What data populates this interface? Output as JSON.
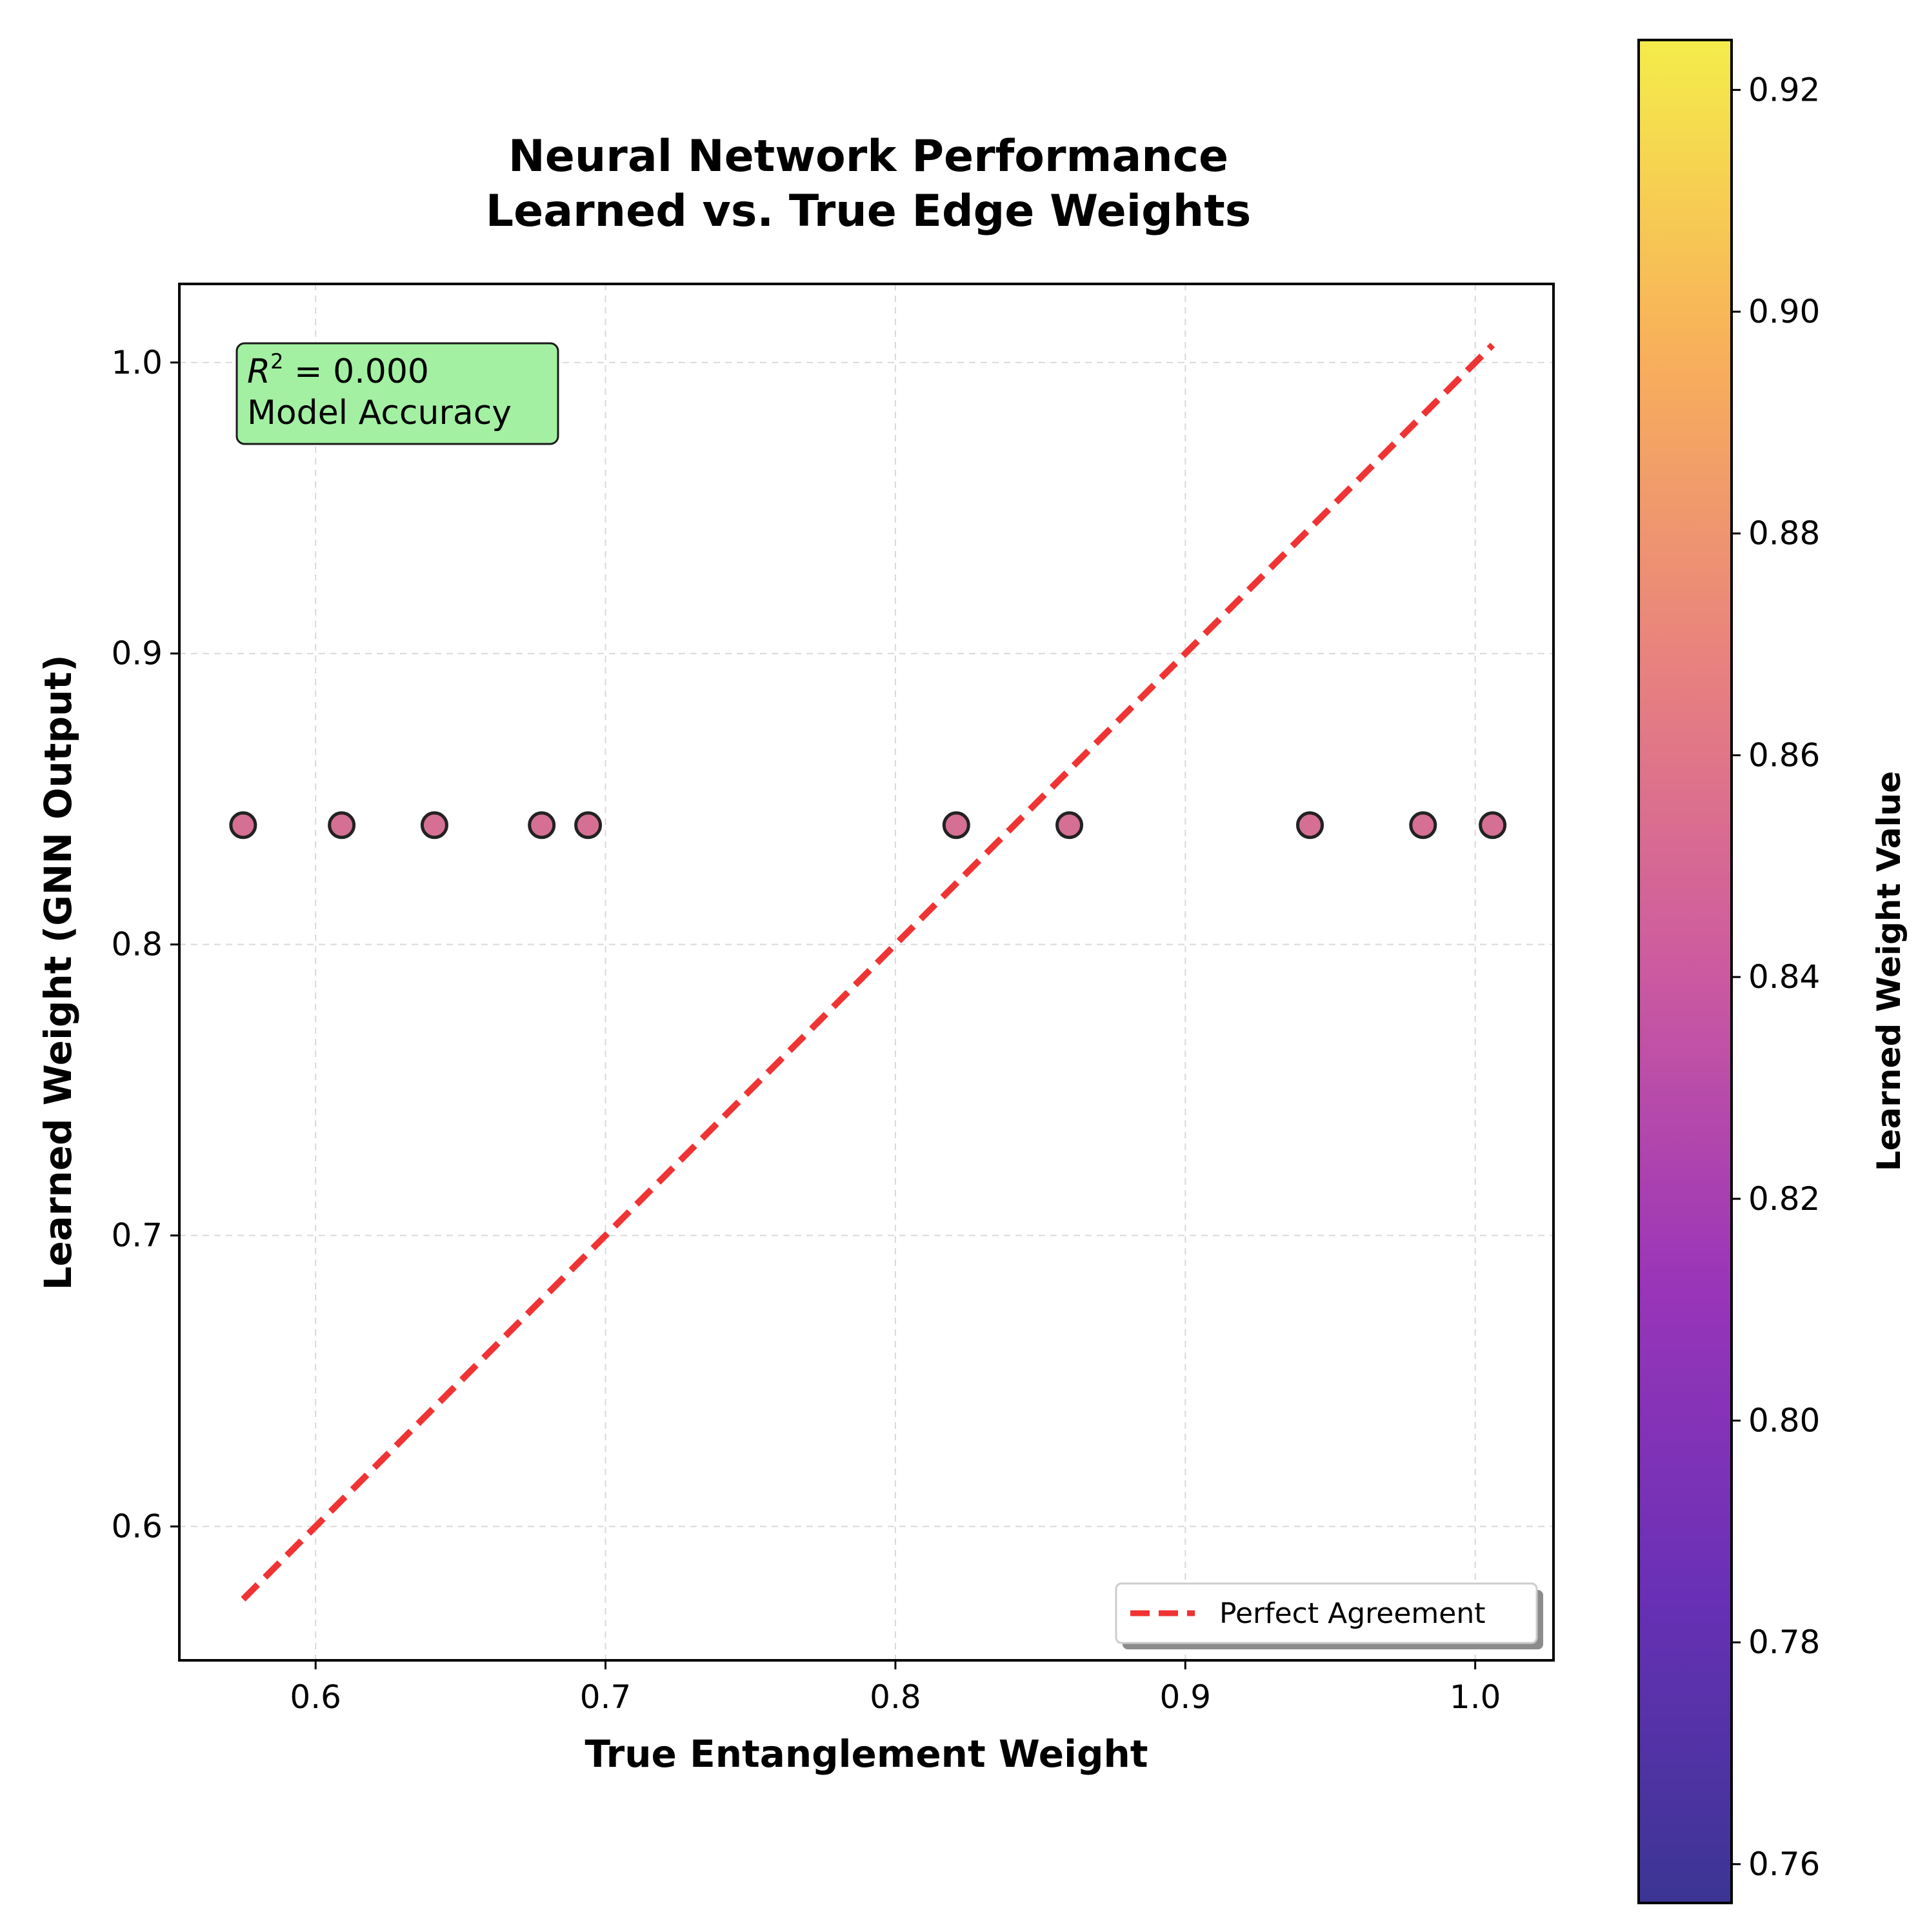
{
  "chart_data": {
    "type": "scatter",
    "title": "Neural Network Performance\nLearned vs. True Edge Weights",
    "xlabel": "True Entanglement Weight",
    "ylabel": "Learned Weight (GNN Output)",
    "xlim": [
      0.553,
      1.027
    ],
    "ylim": [
      0.554,
      1.027
    ],
    "xticks": [
      0.6,
      0.7,
      0.8,
      0.9,
      1.0
    ],
    "xtick_labels": [
      "0.6",
      "0.7",
      "0.8",
      "0.9",
      "1.0"
    ],
    "yticks": [
      0.6,
      0.7,
      0.8,
      0.9,
      1.0
    ],
    "ytick_labels": [
      "0.6",
      "0.7",
      "0.8",
      "0.9",
      "1.0"
    ],
    "grid": true,
    "points": [
      {
        "x": 0.575,
        "y": 0.841
      },
      {
        "x": 0.609,
        "y": 0.841
      },
      {
        "x": 0.641,
        "y": 0.841
      },
      {
        "x": 0.678,
        "y": 0.841
      },
      {
        "x": 0.694,
        "y": 0.841
      },
      {
        "x": 0.821,
        "y": 0.841
      },
      {
        "x": 0.86,
        "y": 0.841
      },
      {
        "x": 0.943,
        "y": 0.841
      },
      {
        "x": 0.982,
        "y": 0.841
      },
      {
        "x": 1.006,
        "y": 0.841
      }
    ],
    "point_color": "#d56f94",
    "reference_line": {
      "name": "Perfect Agreement",
      "x": [
        0.575,
        1.006
      ],
      "y": [
        0.575,
        1.006
      ],
      "color": "#f03333",
      "style": "dashed"
    },
    "legend": {
      "entries": [
        "Perfect Agreement"
      ],
      "position": "lower-right"
    },
    "annotation": {
      "line1_symbol": "R",
      "line1_superscript": "2",
      "line1_rest": " = 0.000",
      "line2": "Model Accuracy",
      "color": "#a3f0a3",
      "position": "top-left"
    },
    "colorbar": {
      "label": "Learned Weight Value",
      "colormap": "plasma",
      "range": [
        0.7565,
        0.9245
      ],
      "ticks": [
        0.76,
        0.78,
        0.8,
        0.82,
        0.84,
        0.86,
        0.88,
        0.9,
        0.92
      ],
      "tick_labels": [
        "0.76",
        "0.78",
        "0.80",
        "0.82",
        "0.84",
        "0.86",
        "0.88",
        "0.90",
        "0.92"
      ],
      "stops": [
        "#3b3594",
        "#6930b6",
        "#9a35b8",
        "#cc5aa0",
        "#e8827e",
        "#f8b05a",
        "#f4ec4a"
      ]
    }
  }
}
